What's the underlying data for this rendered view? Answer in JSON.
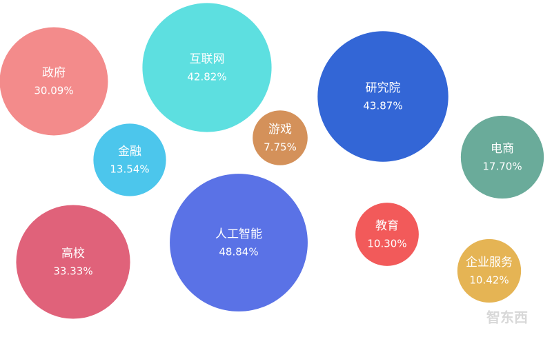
{
  "chart_data": {
    "type": "bubble",
    "categories": [
      "政府",
      "互联网",
      "研究院",
      "游戏",
      "电商",
      "金融",
      "人工智能",
      "教育",
      "高校",
      "企业服务"
    ],
    "values": [
      30.09,
      42.82,
      43.87,
      7.75,
      17.7,
      13.54,
      48.84,
      10.3,
      33.33,
      10.42
    ],
    "value_labels": [
      "30.09%",
      "42.82%",
      "43.87%",
      "7.75%",
      "17.70%",
      "13.54%",
      "48.84%",
      "10.30%",
      "33.33%",
      "10.42%"
    ],
    "colors": [
      "#f38b8b",
      "#5ddfe0",
      "#3366d6",
      "#d4915a",
      "#6aab9a",
      "#4cc6ec",
      "#5a72e6",
      "#f25a5a",
      "#e0627a",
      "#e5b454"
    ],
    "watermark": "智东西"
  }
}
